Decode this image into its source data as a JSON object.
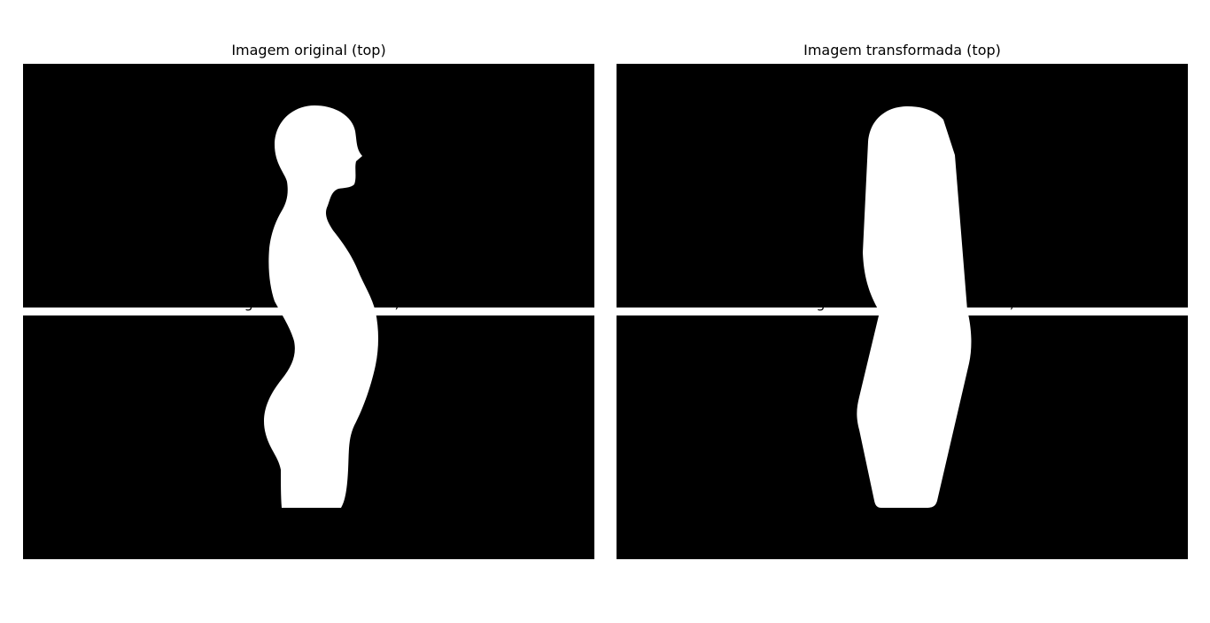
{
  "titles": {
    "original_top": "Imagem original (top)",
    "transformed_top": "Imagem transformada (top)",
    "original_bottom": "Imagem original (bottom)",
    "transformed_bottom": "Imagem transformada (bottom)"
  },
  "colors": {
    "background": "#ffffff",
    "panel": "#000000",
    "silhouette": "#ffffff"
  }
}
